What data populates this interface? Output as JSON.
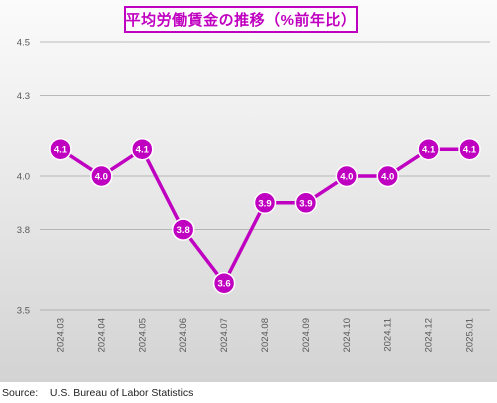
{
  "title": "平均労働賃金の推移（%前年比）",
  "source": {
    "label": "Source:",
    "text": "U.S. Bureau of Labor Statistics"
  },
  "colors": {
    "accent": "#c000c0",
    "grid": "#a6a6a6",
    "tick_text": "#595959"
  },
  "chart_data": {
    "type": "line",
    "title": "平均労働賃金の推移（%前年比）",
    "xlabel": "",
    "ylabel": "",
    "categories": [
      "2024.03",
      "2024.04",
      "2024.05",
      "2024.06",
      "2024.07",
      "2024.08",
      "2024.09",
      "2024.10",
      "2024.11",
      "2024.12",
      "2025.01"
    ],
    "series": [
      {
        "values": [
          4.1,
          4.0,
          4.1,
          3.8,
          3.6,
          3.9,
          3.9,
          4.0,
          4.0,
          4.1,
          4.1
        ],
        "labels": [
          "4.1",
          "4.0",
          "4.1",
          "3.8",
          "3.6",
          "3.9",
          "3.9",
          "4.0",
          "4.0",
          "4.1",
          "4.1"
        ]
      }
    ],
    "y_ticks": [
      3.5,
      3.8,
      4.0,
      4.3,
      4.5
    ],
    "y_tick_labels": [
      "3.5",
      "3.8",
      "4.0",
      "4.3",
      "4.5"
    ],
    "ylim": [
      3.5,
      4.5
    ],
    "grid": true,
    "legend": "none"
  }
}
